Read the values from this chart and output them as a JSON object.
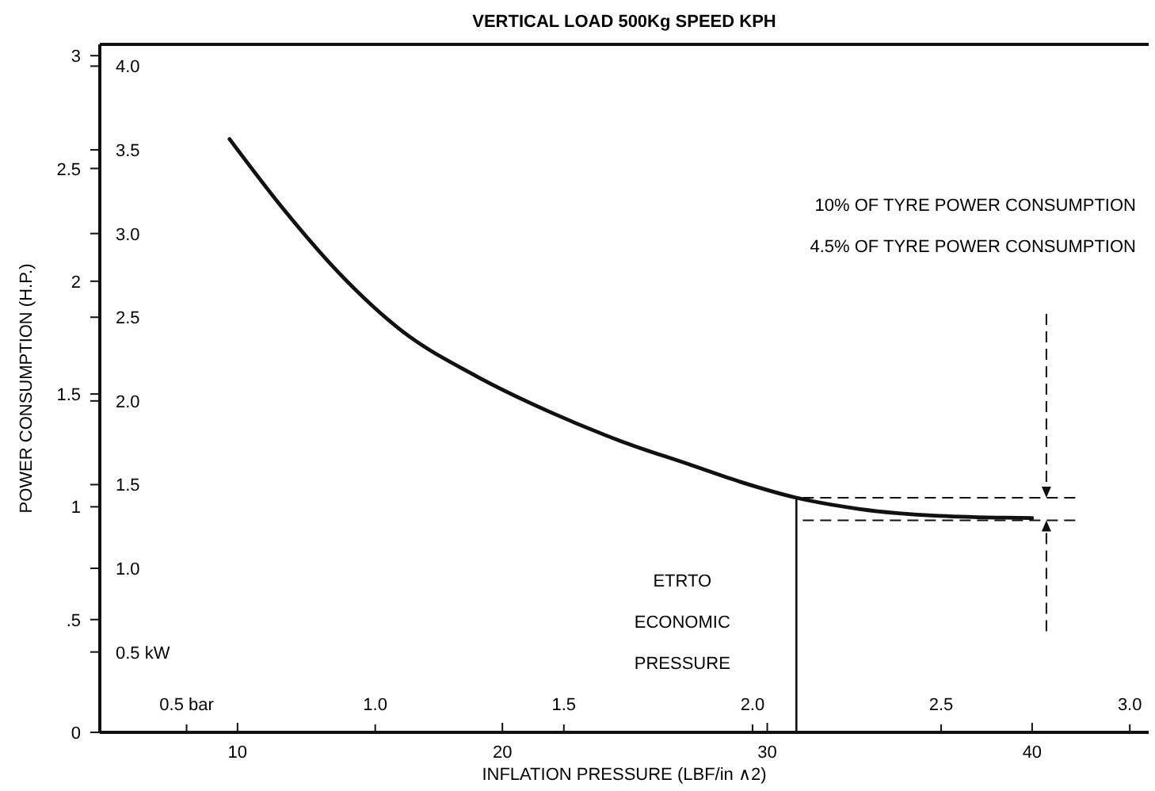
{
  "chart_data": {
    "type": "line",
    "title": "VERTICAL LOAD 500Kg SPEED KPH",
    "xlabel": "INFLATION PRESSURE (LBF/in ∧2)",
    "ylabel": "POWER CONSUMPTION (H.P.)",
    "xlim": [
      4.8,
      44.4
    ],
    "xticks": [
      10,
      20,
      30,
      40
    ],
    "ylim": [
      0,
      3.05
    ],
    "yticks": [
      0,
      {
        "value": 0.5,
        "label": ".5"
      },
      1,
      1.5,
      2,
      2.5,
      3
    ],
    "y2lim": [
      0.02,
      4.13
    ],
    "y2ticks": [
      {
        "value": 0.5,
        "label": "0.5 kW"
      },
      {
        "value": 1,
        "label": "1.0"
      },
      {
        "value": 1.5,
        "label": "1.5"
      },
      {
        "value": 2,
        "label": "2.0"
      },
      {
        "value": 2.5,
        "label": "2.5"
      },
      {
        "value": 3,
        "label": "3.0"
      },
      {
        "value": 3.5,
        "label": "3.5"
      },
      {
        "value": 4,
        "label": "4.0"
      }
    ],
    "x2lim": [
      0.27,
      3.05
    ],
    "x2ticks": [
      {
        "value": 0.5,
        "label": "0.5 bar"
      },
      {
        "value": 1,
        "label": "1.0"
      },
      {
        "value": 1.5,
        "label": "1.5"
      },
      {
        "value": 2,
        "label": "2.0"
      },
      {
        "value": 2.5,
        "label": "2.5"
      },
      {
        "value": 3,
        "label": "3.0"
      }
    ],
    "series": [
      {
        "color": "#111111",
        "x": [
          9.7,
          11.8,
          13.8,
          16.2,
          19.0,
          21.8,
          24.5,
          27.0,
          29.0,
          31.1,
          33.5,
          36.5,
          40
        ],
        "values": [
          2.63,
          2.31,
          2.04,
          1.78,
          1.58,
          1.42,
          1.29,
          1.19,
          1.11,
          1.04,
          0.99,
          0.96,
          0.95
        ]
      }
    ],
    "ref_lines": [
      {
        "axis": "x",
        "value": 31.1,
        "label": "ETRTO ECONOMIC PRESSURE",
        "color": "#111111",
        "line_style": "solid"
      },
      {
        "axis": "y",
        "value": 1.04,
        "color": "#111111",
        "line_style": "dashed"
      },
      {
        "axis": "y",
        "value": 0.94,
        "color": "#111111",
        "line_style": "dashed"
      }
    ],
    "annotations": [
      "10% OF TYRE POWER CONSUMPTION",
      "4.5% OF TYRE POWER CONSUMPTION"
    ],
    "grid": false,
    "marker": "none",
    "line_style": "solid"
  }
}
